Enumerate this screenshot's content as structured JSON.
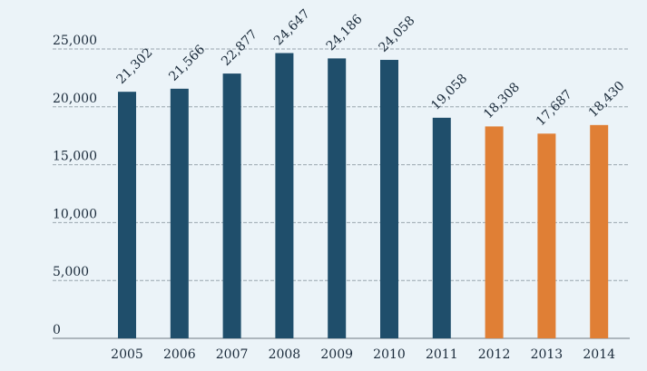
{
  "chart_data": {
    "type": "bar",
    "categories": [
      "2005",
      "2006",
      "2007",
      "2008",
      "2009",
      "2010",
      "2011",
      "2012",
      "2013",
      "2014"
    ],
    "values": [
      21302,
      21566,
      22877,
      24647,
      24186,
      24058,
      19058,
      18308,
      17687,
      18430
    ],
    "value_labels": [
      "21,302",
      "21,566",
      "22,877",
      "24,647",
      "24,186",
      "24,058",
      "19,058",
      "18,308",
      "17,687",
      "18,430"
    ],
    "yticks": [
      0,
      5000,
      10000,
      15000,
      20000,
      25000
    ],
    "ytick_labels": [
      "0",
      "5,000",
      "10,000",
      "15,000",
      "20,000",
      "25,000"
    ],
    "ylim": [
      0,
      25000
    ],
    "grid": true,
    "title": "",
    "xlabel": "",
    "ylabel": "",
    "colors": {
      "default": "#1f4e6b",
      "highlight": "#e07f35",
      "highlight_categories": [
        "2012",
        "2013",
        "2014"
      ]
    }
  }
}
